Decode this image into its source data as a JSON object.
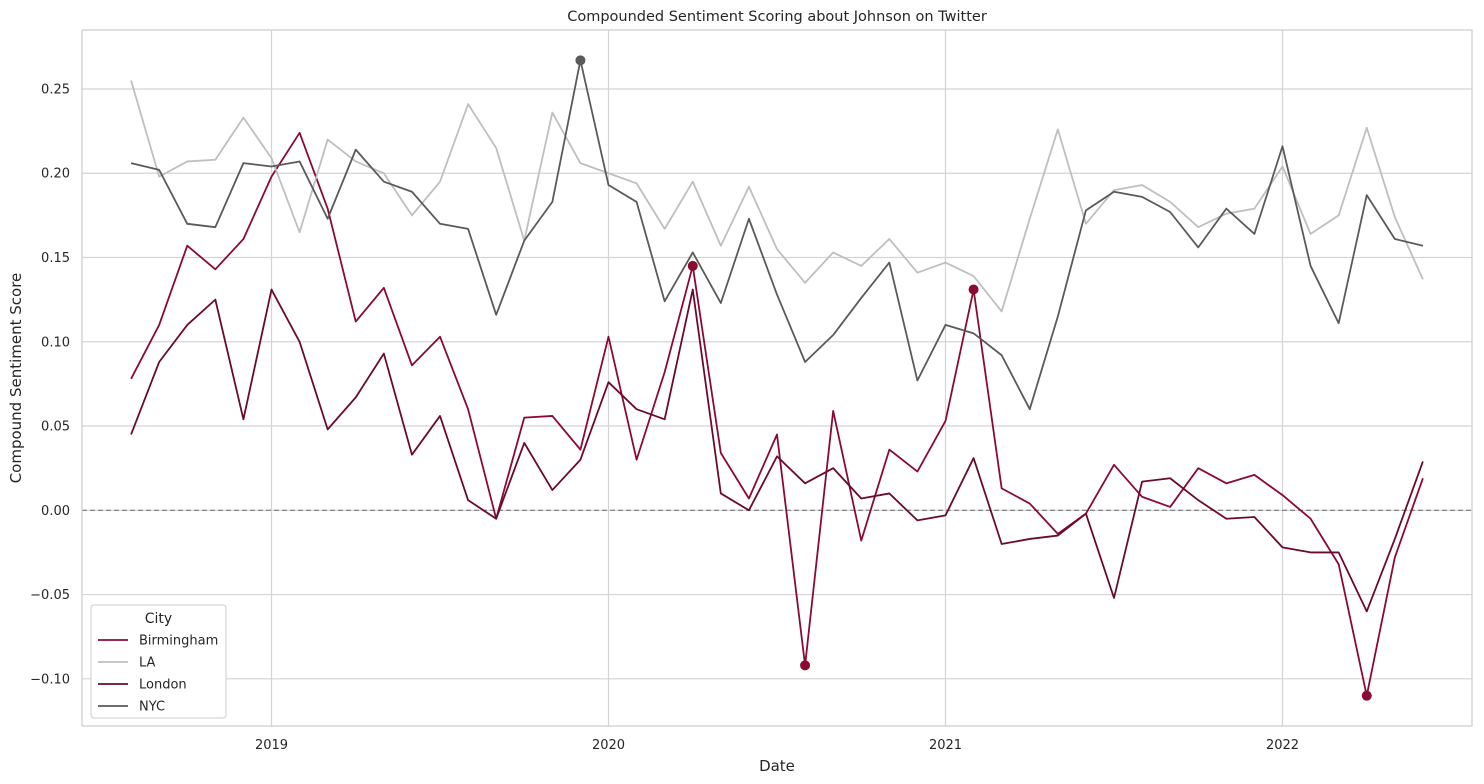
{
  "chart_data": {
    "type": "line",
    "title": "Compounded Sentiment Scoring about Johnson on Twitter",
    "xlabel": "Date",
    "ylabel": "Compound Sentiment Score",
    "x_start": "2018-08",
    "x_end": "2022-06",
    "x_ticks": [
      {
        "date": "2019-01",
        "label": "2019"
      },
      {
        "date": "2020-01",
        "label": "2020"
      },
      {
        "date": "2021-01",
        "label": "2021"
      },
      {
        "date": "2022-01",
        "label": "2022"
      }
    ],
    "ylim": [
      -0.128,
      0.285
    ],
    "y_ticks": [
      {
        "value": 0.25,
        "label": "0.25"
      },
      {
        "value": 0.2,
        "label": "0.20"
      },
      {
        "value": 0.15,
        "label": "0.15"
      },
      {
        "value": 0.1,
        "label": "0.10"
      },
      {
        "value": 0.05,
        "label": "0.05"
      },
      {
        "value": 0.0,
        "label": "0.00"
      },
      {
        "value": -0.05,
        "label": "−0.05"
      },
      {
        "value": -0.1,
        "label": "−0.10"
      }
    ],
    "grid": true,
    "zero_line": true,
    "legend": {
      "title": "City",
      "position": "bottom-left"
    },
    "series": [
      {
        "name": "Birmingham",
        "color": "#8b0a32",
        "values": [
          0.078,
          0.11,
          0.157,
          0.143,
          0.161,
          0.198,
          0.224,
          0.179,
          0.112,
          0.132,
          0.086,
          0.103,
          0.06,
          -0.005,
          0.055,
          0.056,
          0.036,
          0.103,
          0.03,
          0.082,
          0.145,
          0.034,
          0.007,
          0.045,
          -0.092,
          0.059,
          -0.018,
          0.036,
          0.023,
          0.053,
          0.131,
          0.013,
          0.004,
          -0.014,
          -0.002,
          0.027,
          0.008,
          0.002,
          0.025,
          0.016,
          0.021,
          0.009,
          -0.005,
          -0.032,
          -0.11,
          -0.028,
          0.019
        ],
        "markers": [
          {
            "date": "2020-04",
            "value": 0.145
          },
          {
            "date": "2020-08",
            "value": -0.092
          },
          {
            "date": "2021-02",
            "value": 0.131
          },
          {
            "date": "2022-04",
            "value": -0.11
          }
        ]
      },
      {
        "name": "LA",
        "color": "#bfbfbf",
        "values": [
          0.255,
          0.198,
          0.207,
          0.208,
          0.233,
          0.209,
          0.165,
          0.22,
          0.207,
          0.2,
          0.175,
          0.195,
          0.241,
          0.215,
          0.16,
          0.236,
          0.206,
          0.2,
          0.194,
          0.167,
          0.195,
          0.157,
          0.192,
          0.155,
          0.135,
          0.153,
          0.145,
          0.161,
          0.141,
          0.147,
          0.139,
          0.118,
          0.173,
          0.226,
          0.17,
          0.19,
          0.193,
          0.183,
          0.168,
          0.176,
          0.179,
          0.204,
          0.164,
          0.175,
          0.227,
          0.174,
          0.137
        ],
        "markers": []
      },
      {
        "name": "London",
        "color": "#6b0a2e",
        "values": [
          0.045,
          0.088,
          0.11,
          0.125,
          0.054,
          0.131,
          0.1,
          0.048,
          0.067,
          0.093,
          0.033,
          0.056,
          0.006,
          -0.005,
          0.04,
          0.012,
          0.03,
          0.076,
          0.06,
          0.054,
          0.131,
          0.01,
          0.0,
          0.032,
          0.016,
          0.025,
          0.007,
          0.01,
          -0.006,
          -0.003,
          0.031,
          -0.02,
          -0.017,
          -0.015,
          -0.002,
          -0.052,
          0.017,
          0.019,
          0.006,
          -0.005,
          -0.004,
          -0.022,
          -0.025,
          -0.025,
          -0.06,
          -0.017,
          0.029
        ],
        "markers": []
      },
      {
        "name": "NYC",
        "color": "#5a5a5a",
        "values": [
          0.206,
          0.202,
          0.17,
          0.168,
          0.206,
          0.204,
          0.207,
          0.173,
          0.214,
          0.195,
          0.189,
          0.17,
          0.167,
          0.116,
          0.16,
          0.183,
          0.267,
          0.193,
          0.183,
          0.124,
          0.153,
          0.123,
          0.173,
          0.128,
          0.088,
          0.104,
          0.126,
          0.147,
          0.077,
          0.11,
          0.105,
          0.092,
          0.06,
          0.115,
          0.178,
          0.189,
          0.186,
          0.177,
          0.156,
          0.179,
          0.164,
          0.216,
          0.145,
          0.111,
          0.187,
          0.161,
          0.157
        ],
        "markers": [
          {
            "date": "2019-12",
            "value": 0.267
          }
        ]
      }
    ]
  }
}
